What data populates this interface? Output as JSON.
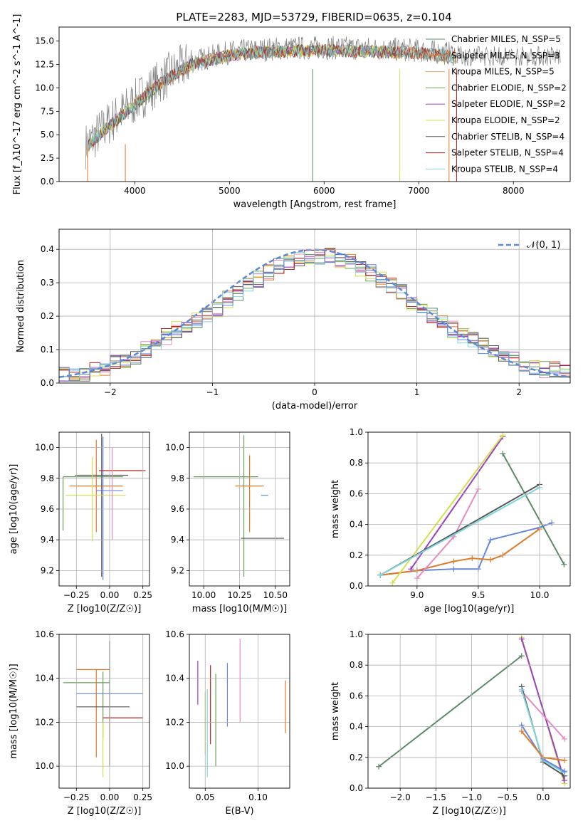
{
  "chart_data": [
    {
      "type": "line",
      "title": "PLATE=2283, MJD=53729, FIBERID=0635, z=0.104",
      "xlabel": "wavelength [Angstrom, rest frame]",
      "ylabel": "Flux [f_λ10^-17 erg cm^-2 s^-1 A^-1]",
      "xlim": [
        3200,
        8600
      ],
      "ylim": [
        0,
        16.5
      ],
      "xticks": [
        "4000",
        "5000",
        "6000",
        "7000",
        "8000"
      ],
      "yticks": [
        "0.0",
        "2.5",
        "5.0",
        "7.5",
        "10.0",
        "12.5",
        "15.0"
      ],
      "grid": false,
      "legend_position": "top-right",
      "legend": [
        "Chabrier MILES, N_SSP=5",
        "Salpeter MILES, N_SSP=3",
        "Kroupa MILES, N_SSP=5",
        "Chabrier ELODIE, N_SSP=2",
        "Salpeter ELODIE, N_SSP=2",
        "Kroupa ELODIE, N_SSP=2",
        "Chabrier STELIB, N_SSP=4",
        "Salpeter STELIB, N_SSP=4",
        "Kroupa STELIB, N_SSP=4"
      ],
      "spectrum_continuum": {
        "x": [
          3500,
          3700,
          4000,
          4300,
          4600,
          5000,
          5500,
          6000,
          6500,
          7000,
          7500
        ],
        "y": [
          4,
          6,
          8.5,
          11,
          12.8,
          13.8,
          14.2,
          14.3,
          14.2,
          14.0,
          13.5
        ]
      },
      "spectrum_dropout_x": [
        3500,
        3900,
        5880,
        6800,
        7320,
        7400
      ]
    },
    {
      "type": "bar",
      "xlabel": "(data-model)/error",
      "ylabel": "Normed distribution",
      "xlim": [
        -2.5,
        2.5
      ],
      "ylim": [
        0,
        0.46
      ],
      "xticks": [
        "−2",
        "−1",
        "0",
        "1",
        "2"
      ],
      "yticks": [
        "0.0",
        "0.1",
        "0.2",
        "0.3",
        "0.4"
      ],
      "grid": true,
      "legend_position": "top-right",
      "legend": [
        "𝒩(0, 1)"
      ],
      "bin_width": 0.1,
      "reference_curve": "gaussian N(0,1)",
      "histogram_values": [
        0.03,
        0.03,
        0.03,
        0.04,
        0.04,
        0.06,
        0.07,
        0.08,
        0.1,
        0.12,
        0.14,
        0.16,
        0.17,
        0.19,
        0.2,
        0.22,
        0.25,
        0.27,
        0.29,
        0.31,
        0.33,
        0.35,
        0.36,
        0.37,
        0.38,
        0.38,
        0.38,
        0.37,
        0.36,
        0.34,
        0.33,
        0.31,
        0.29,
        0.27,
        0.24,
        0.22,
        0.2,
        0.18,
        0.16,
        0.14,
        0.13,
        0.11,
        0.1,
        0.08,
        0.07,
        0.06,
        0.05,
        0.04,
        0.04,
        0.03
      ]
    },
    {
      "type": "scatter",
      "xlabel": "Z [log10(Z/Z☉)]",
      "ylabel": "age [log10(age/yr)]",
      "xlim": [
        -0.38,
        0.3
      ],
      "ylim": [
        9.1,
        10.1
      ],
      "xticks": [
        "−0.25",
        "0.00",
        "0.25"
      ],
      "yticks": [
        "9.2",
        "9.4",
        "9.6",
        "9.8",
        "10.0"
      ],
      "grid": true,
      "points": [
        {
          "x": -0.35,
          "y": 9.81,
          "xerr": [
            0.0,
            0.45
          ],
          "yerr": [
            0.35,
            0.0
          ]
        },
        {
          "x": -0.1,
          "y": 9.75,
          "xerr": [
            0.2,
            0.2
          ],
          "yerr": [
            0.3,
            0.3
          ]
        },
        {
          "x": -0.05,
          "y": 9.72,
          "xerr": [
            0.05,
            0.15
          ],
          "yerr": [
            0.58,
            0.35
          ]
        },
        {
          "x": -0.06,
          "y": 9.82,
          "xerr": [
            0.2,
            0.2
          ],
          "yerr": [
            0.66,
            0.27
          ]
        },
        {
          "x": -0.08,
          "y": 9.85,
          "xerr": [
            0.0,
            0.35
          ],
          "yerr": [
            0.0,
            0.0
          ]
        },
        {
          "x": -0.13,
          "y": 9.69,
          "xerr": [
            0.2,
            0.25
          ],
          "yerr": [
            0.3,
            0.25
          ]
        },
        {
          "x": 0.02,
          "y": 9.7,
          "xerr": [
            0.0,
            0.0
          ],
          "yerr": [
            0.3,
            0.3
          ]
        }
      ]
    },
    {
      "type": "scatter",
      "xlabel": "mass [log10(M/M☉)]",
      "ylabel": "",
      "xlim": [
        9.9,
        10.6
      ],
      "ylim": [
        9.1,
        10.1
      ],
      "xticks": [
        "10.00",
        "10.25",
        "10.50"
      ],
      "yticks": [
        "9.2",
        "9.4",
        "9.6",
        "9.8",
        "10.0"
      ],
      "grid": true,
      "points": [
        {
          "x": 10.28,
          "y": 9.81,
          "xerr": [
            0.35,
            0.1
          ],
          "yerr": [
            0.65,
            0.27
          ]
        },
        {
          "x": 10.32,
          "y": 9.75,
          "xerr": [
            0.1,
            0.1
          ],
          "yerr": [
            0.3,
            0.2
          ]
        },
        {
          "x": 10.45,
          "y": 9.69,
          "xerr": [
            0.05,
            0.0
          ],
          "yerr": [
            0.0,
            0.0
          ]
        },
        {
          "x": 10.41,
          "y": 9.41,
          "xerr": [
            0.15,
            0.15
          ],
          "yerr": [
            0.0,
            0.0
          ]
        }
      ]
    },
    {
      "type": "line",
      "xlabel": "age [log10(age/yr)]",
      "ylabel": "mass weight",
      "xlim": [
        8.6,
        10.25
      ],
      "ylim": [
        0.0,
        1.0
      ],
      "xticks": [
        "9.0",
        "9.5",
        "10.0"
      ],
      "yticks": [
        "0.0",
        "0.2",
        "0.4",
        "0.6",
        "0.8",
        "1.0"
      ],
      "grid": true,
      "series": [
        {
          "values_x": [
            8.7,
            9.0,
            9.3,
            9.5,
            9.6,
            10.0,
            10.1
          ],
          "values_y": [
            0.07,
            0.1,
            0.11,
            0.11,
            0.3,
            0.38,
            0.41
          ]
        },
        {
          "values_x": [
            8.7,
            9.0,
            9.3,
            9.45,
            9.6,
            9.7,
            10.0
          ],
          "values_y": [
            0.07,
            0.1,
            0.16,
            0.18,
            0.17,
            0.2,
            0.37
          ]
        },
        {
          "values_x": [
            8.95,
            9.7
          ],
          "values_y": [
            0.11,
            0.97
          ]
        },
        {
          "values_x": [
            8.8,
            9.7
          ],
          "values_y": [
            0.02,
            0.98
          ]
        },
        {
          "values_x": [
            9.0,
            9.3,
            9.5
          ],
          "values_y": [
            0.05,
            0.32,
            0.63
          ]
        },
        {
          "values_x": [
            9.7,
            10.2
          ],
          "values_y": [
            0.86,
            0.14
          ]
        },
        {
          "values_x": [
            8.7,
            10.0
          ],
          "values_y": [
            0.07,
            0.66
          ]
        },
        {
          "values_x": [
            8.7,
            10.0
          ],
          "values_y": [
            0.07,
            0.64
          ]
        }
      ]
    },
    {
      "type": "scatter",
      "xlabel": "Z [log10(Z/Z☉)]",
      "ylabel": "mass [log10(M/M☉)]",
      "xlim": [
        -0.38,
        0.3
      ],
      "ylim": [
        9.9,
        10.6
      ],
      "xticks": [
        "−0.25",
        "0.00",
        "0.25"
      ],
      "yticks": [
        "10.0",
        "10.2",
        "10.4",
        "10.6"
      ],
      "grid": true,
      "points": [
        {
          "x": -0.05,
          "y": 10.38,
          "xerr": [
            0.3,
            0.05
          ],
          "yerr": [
            0.25,
            0.05
          ]
        },
        {
          "x": -0.1,
          "y": 10.44,
          "xerr": [
            0.15,
            0.1
          ],
          "yerr": [
            0.4,
            0.0
          ]
        },
        {
          "x": 0.1,
          "y": 10.33,
          "xerr": [
            0.35,
            0.15
          ],
          "yerr": [
            0.0,
            0.0
          ]
        },
        {
          "x": 0.0,
          "y": 10.27,
          "xerr": [
            0.25,
            0.15
          ],
          "yerr": [
            0.27,
            0.3
          ]
        },
        {
          "x": 0.1,
          "y": 10.22,
          "xerr": [
            0.15,
            0.15
          ],
          "yerr": [
            0.0,
            0.0
          ]
        },
        {
          "x": -0.05,
          "y": 10.2,
          "xerr": [
            0.0,
            0.0
          ],
          "yerr": [
            0.25,
            0.0
          ]
        }
      ]
    },
    {
      "type": "scatter",
      "xlabel": "E(B-V)",
      "ylabel": "",
      "xlim": [
        0.035,
        0.13
      ],
      "ylim": [
        9.9,
        10.6
      ],
      "xticks": [
        "0.05",
        "0.10"
      ],
      "yticks": [
        "10.0",
        "10.2",
        "10.4",
        "10.6"
      ],
      "grid": true,
      "vertical_bars": [
        {
          "x": 0.043,
          "ymin": 10.28,
          "ymax": 10.48
        },
        {
          "x": 0.05,
          "ymin": 10.05,
          "ymax": 10.34
        },
        {
          "x": 0.052,
          "ymin": 9.95,
          "ymax": 10.35
        },
        {
          "x": 0.055,
          "ymin": 10.1,
          "ymax": 10.46
        },
        {
          "x": 0.06,
          "ymin": 10.0,
          "ymax": 10.42
        },
        {
          "x": 0.071,
          "ymin": 10.18,
          "ymax": 10.47
        },
        {
          "x": 0.083,
          "ymin": 10.2,
          "ymax": 10.58
        },
        {
          "x": 0.126,
          "ymin": 10.15,
          "ymax": 10.39
        }
      ]
    },
    {
      "type": "line",
      "xlabel": "Z [log10(Z/Z☉)]",
      "ylabel": "mass weight",
      "xlim": [
        -2.45,
        0.38
      ],
      "ylim": [
        0.0,
        1.0
      ],
      "xticks": [
        "−2.0",
        "−1.5",
        "−1.0",
        "−0.5",
        "0.0"
      ],
      "yticks": [
        "0.0",
        "0.2",
        "0.4",
        "0.6",
        "0.8",
        "1.0"
      ],
      "grid": true,
      "series": [
        {
          "values_x": [
            -2.3,
            -0.3
          ],
          "values_y": [
            0.14,
            0.86
          ]
        },
        {
          "values_x": [
            -0.3,
            0.3
          ],
          "values_y": [
            0.98,
            0.03
          ]
        },
        {
          "values_x": [
            -0.3,
            0.3
          ],
          "values_y": [
            0.97,
            0.05
          ]
        },
        {
          "values_x": [
            -0.3,
            0.3
          ],
          "values_y": [
            0.63,
            0.32
          ]
        },
        {
          "values_x": [
            -0.3,
            0.0,
            0.3
          ],
          "values_y": [
            0.66,
            0.17,
            0.08
          ]
        },
        {
          "values_x": [
            -0.3,
            0.0,
            0.3
          ],
          "values_y": [
            0.64,
            0.18,
            0.1
          ]
        },
        {
          "values_x": [
            -0.3,
            0.0,
            0.3
          ],
          "values_y": [
            0.41,
            0.19,
            0.11
          ]
        },
        {
          "values_x": [
            -0.3,
            0.0,
            0.3
          ],
          "values_y": [
            0.37,
            0.2,
            0.18
          ]
        }
      ]
    }
  ],
  "colors": {
    "chabrier_miles": "#5b8c6b",
    "salpeter_miles": "#e07b28",
    "kroupa_miles": "#d2ac6f",
    "chabrier_elodie": "#6b9e5a",
    "salpeter_elodie": "#9b40c0",
    "kroupa_elodie": "#d4e04c",
    "chabrier_stelib": "#555555",
    "salpeter_stelib": "#b52020",
    "kroupa_stelib": "#7fd7dd",
    "blue": "#6487dd",
    "pink": "#e98ac0",
    "green_dark": "#5a8a68",
    "gaussian": "#5b8ad9"
  }
}
